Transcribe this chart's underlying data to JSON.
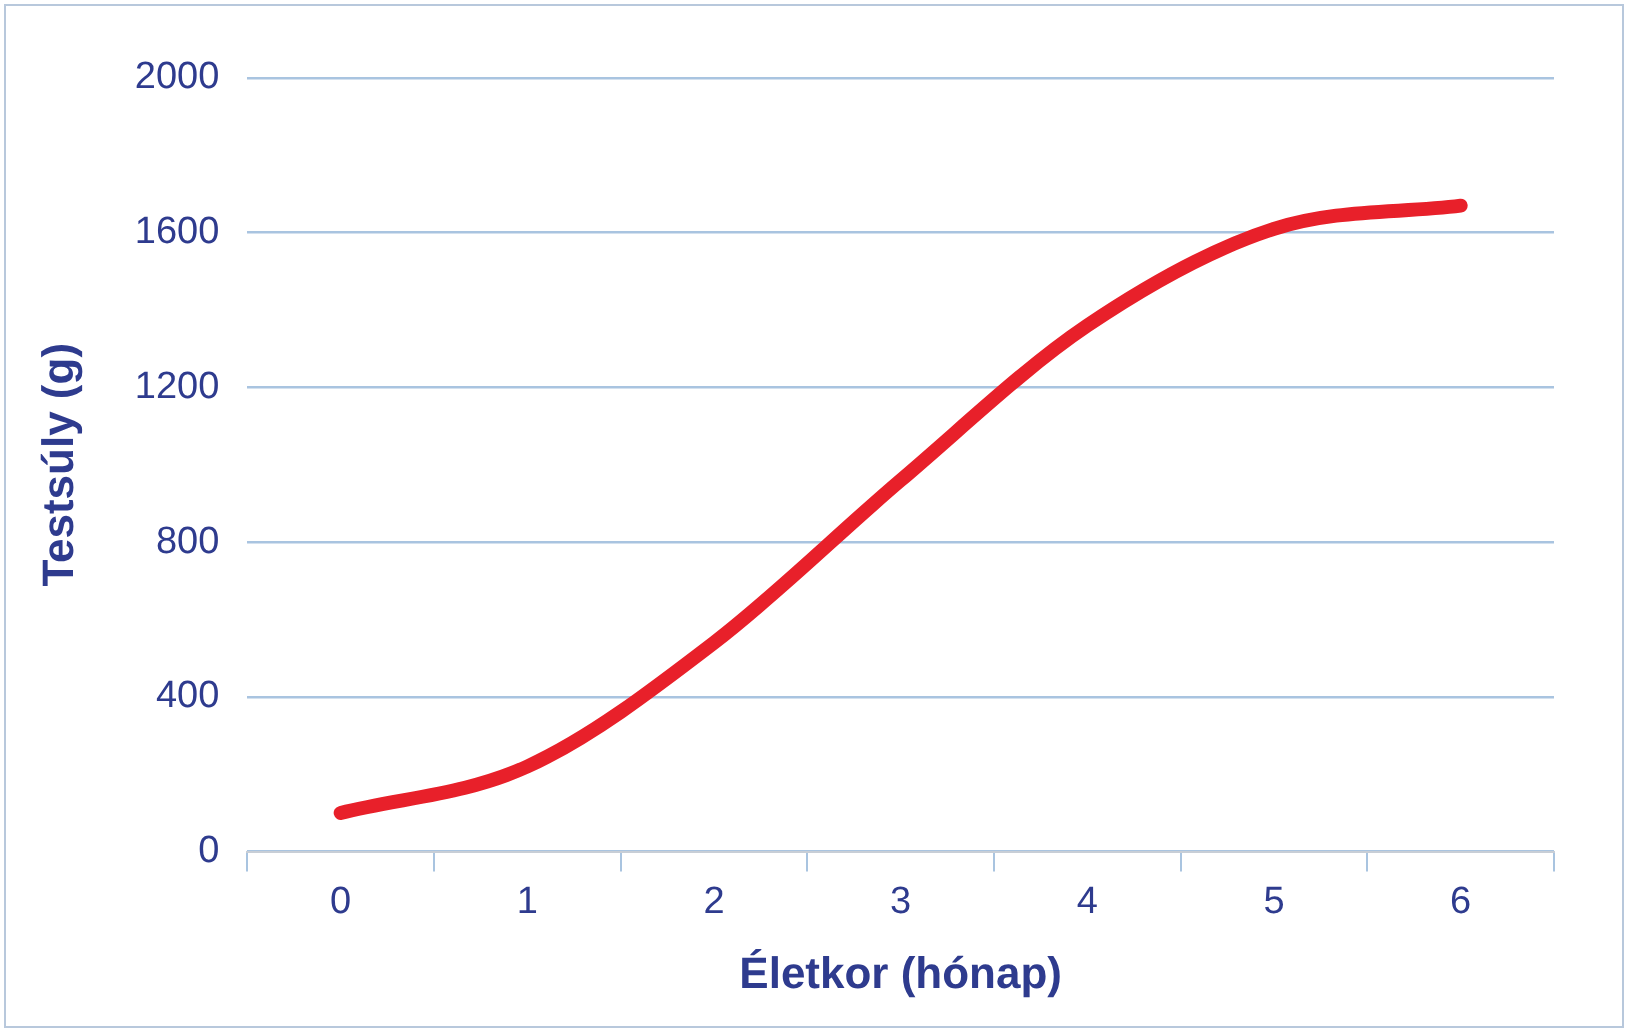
{
  "chart_data": {
    "type": "line",
    "xlabel": "Életkor (hónap)",
    "ylabel": "Testsúly (g)",
    "categories": [
      "0",
      "1",
      "2",
      "3",
      "4",
      "5",
      "6"
    ],
    "series": [
      {
        "color": "#e8202a",
        "values": [
          100,
          220,
          540,
          960,
          1360,
          1610,
          1670
        ]
      }
    ],
    "ylim": [
      0,
      2000
    ],
    "yticks": [
      0,
      400,
      800,
      1200,
      1600,
      2000
    ],
    "grid": "y",
    "legend": false,
    "marker": "none",
    "line_style": "solid"
  }
}
